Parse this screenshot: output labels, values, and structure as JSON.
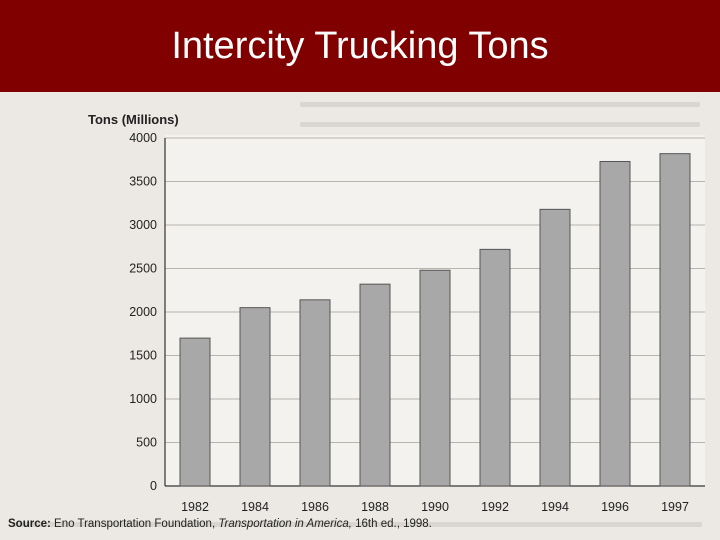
{
  "slide": {
    "title": "Intercity Trucking Tons"
  },
  "colors": {
    "header": "#800000",
    "bar": "#a8a8a8",
    "bar_edge": "#555555"
  },
  "source": {
    "label": "Source:",
    "org": "Eno Transportation Foundation,",
    "book": "Transportation in America,",
    "edition": "16th ed., 1998."
  },
  "chart_data": {
    "type": "bar",
    "title": "",
    "ylabel": "Tons (Millions)",
    "xlabel": "",
    "categories": [
      "1982",
      "1984",
      "1986",
      "1988",
      "1990",
      "1992",
      "1994",
      "1996",
      "1997"
    ],
    "values": [
      1700,
      2050,
      2140,
      2320,
      2480,
      2720,
      3180,
      3730,
      3820
    ],
    "ylim": [
      0,
      4000
    ],
    "yticks": [
      "0",
      "500",
      "1000",
      "1500",
      "2000",
      "2500",
      "3000",
      "3500",
      "4000"
    ],
    "grid": true,
    "legend": "none"
  }
}
